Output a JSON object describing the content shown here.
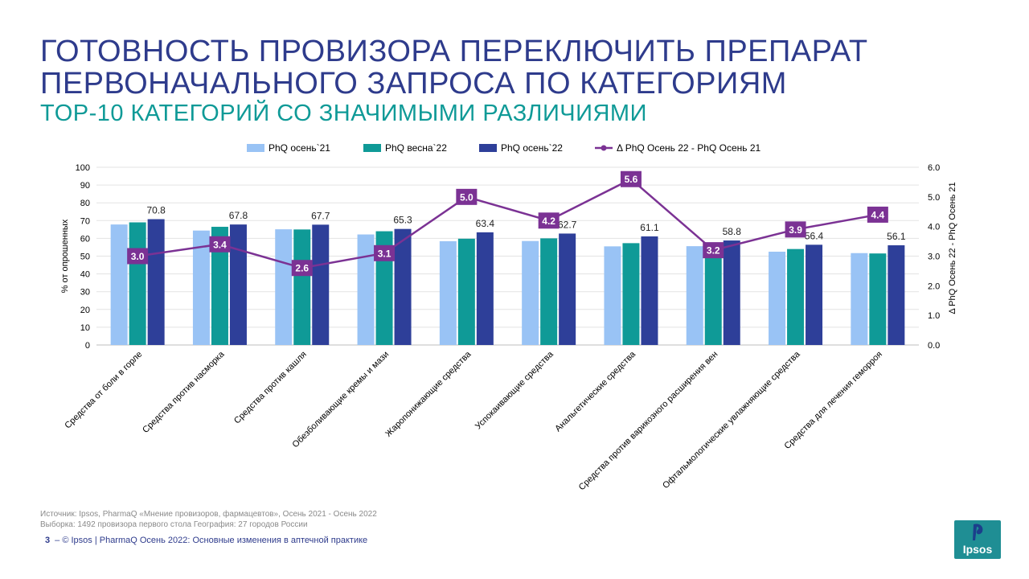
{
  "title_line1": "ГОТОВНОСТЬ ПРОВИЗОРА ПЕРЕКЛЮЧИТЬ ПРЕПАРАТ",
  "title_line2": "ПЕРВОНАЧАЛЬНОГО ЗАПРОСА ПО КАТЕГОРИЯМ",
  "subtitle": "TOP-10 КАТЕГОРИЙ СО ЗНАЧИМЫМИ РАЗЛИЧИЯМИ",
  "footnote_source": "Источник: Ipsos, PharmaQ «Мнение провизоров, фармацевтов», Осень 2021 - Осень 2022",
  "footnote_sample": "Выборка: 1492 провизора первого стола  География: 27 городов России",
  "footer": {
    "page": "3",
    "dash": "–",
    "text": "© Ipsos | PharmaQ Осень 2022: Основные изменения в аптечной практике"
  },
  "logo_text": "Ipsos",
  "colors": {
    "title": "#2e3b8c",
    "subtitle": "#0f9a97",
    "series1": "#99c3f5",
    "series2": "#0f9a97",
    "series3": "#2e3f99",
    "delta": "#7b3294"
  },
  "chart_data": {
    "type": "bar",
    "categories": [
      "Средства от боли в горле",
      "Средства против насморка",
      "Средства против кашля",
      "Обезболивающие кремы и мази",
      "Жаропонижающие средства",
      "Успокаивающие средства",
      "Анальгетические средства",
      "Средства против варикозного расширения вен",
      "Офтальмологические увлажняющие средства",
      "Средства для лечения геморроя"
    ],
    "series": [
      {
        "name": "PhQ осень`21",
        "values": [
          67.8,
          64.4,
          65.1,
          62.2,
          58.4,
          58.5,
          55.5,
          55.6,
          52.5,
          51.7
        ]
      },
      {
        "name": "PhQ весна`22",
        "values": [
          69.0,
          66.5,
          65.0,
          64.0,
          59.8,
          60.0,
          57.3,
          56.5,
          54.0,
          51.5
        ]
      },
      {
        "name": "PhQ осень`22",
        "values": [
          70.8,
          67.8,
          67.7,
          65.3,
          63.4,
          62.7,
          61.1,
          58.8,
          56.4,
          56.1
        ]
      }
    ],
    "labeled_series": "PhQ осень`22",
    "line": {
      "name": "Δ PhQ Осень 22 - PhQ Осень 21",
      "values": [
        3.0,
        3.4,
        2.6,
        3.1,
        5.0,
        4.2,
        5.6,
        3.2,
        3.9,
        4.4
      ]
    },
    "ylabel": "% от опрошенных",
    "y2label": "Δ PhQ Осень 22 - PhQ Осень 21",
    "ylim": [
      0,
      100
    ],
    "y_ticks": [
      "0",
      "10",
      "20",
      "30",
      "40",
      "50",
      "60",
      "70",
      "80",
      "90",
      "100"
    ],
    "y2lim": [
      0,
      6
    ],
    "y2_ticks": [
      "0.0",
      "1.0",
      "2.0",
      "3.0",
      "4.0",
      "5.0",
      "6.0"
    ],
    "legend_position": "top"
  }
}
